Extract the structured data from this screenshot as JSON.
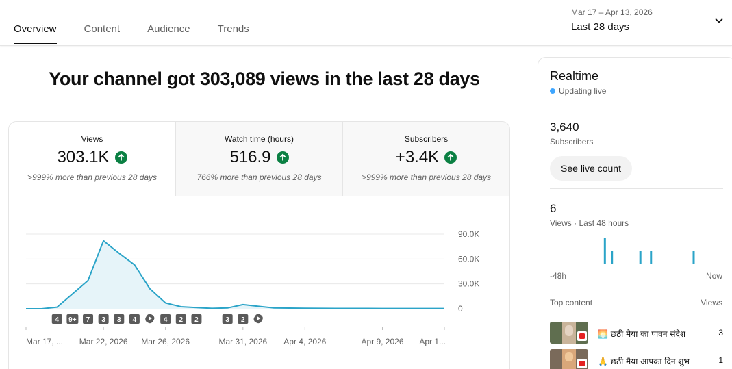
{
  "tabs": [
    {
      "label": "Overview",
      "active": true
    },
    {
      "label": "Content",
      "active": false
    },
    {
      "label": "Audience",
      "active": false
    },
    {
      "label": "Trends",
      "active": false
    }
  ],
  "date_range": {
    "range": "Mar 17 – Apr 13, 2026",
    "period": "Last 28 days",
    "icon": "chevron-down-icon"
  },
  "headline": "Your channel got 303,089 views in the last 28 days",
  "metrics": [
    {
      "label": "Views",
      "value": "303.1K",
      "compare": ">999% more than previous 28 days",
      "icon": "arrow-up-icon"
    },
    {
      "label": "Watch time (hours)",
      "value": "516.9",
      "compare": "766% more than previous 28 days",
      "icon": "arrow-up-icon"
    },
    {
      "label": "Subscribers",
      "value": "+3.4K",
      "compare": ">999% more than previous 28 days",
      "icon": "arrow-up-icon"
    }
  ],
  "chart_data": {
    "type": "area",
    "x": [
      "Mar 17",
      "Mar 18",
      "Mar 19",
      "Mar 20",
      "Mar 21",
      "Mar 22",
      "Mar 23",
      "Mar 24",
      "Mar 25",
      "Mar 26",
      "Mar 27",
      "Mar 28",
      "Mar 29",
      "Mar 30",
      "Mar 31",
      "Apr 1",
      "Apr 2",
      "Apr 3",
      "Apr 4",
      "Apr 5",
      "Apr 6",
      "Apr 7",
      "Apr 8",
      "Apr 9",
      "Apr 10",
      "Apr 11",
      "Apr 12",
      "Apr 13"
    ],
    "values": [
      0,
      0,
      2000,
      18000,
      34000,
      82000,
      67000,
      53000,
      24000,
      7000,
      2500,
      1500,
      500,
      1000,
      5000,
      3000,
      1000,
      800,
      600,
      500,
      400,
      400,
      400,
      300,
      300,
      300,
      300,
      300
    ],
    "x_tick_labels": [
      "Mar 17, ...",
      "Mar 22, 2026",
      "Mar 26, 2026",
      "Mar 31, 2026",
      "Apr 4, 2026",
      "Apr 9, 2026",
      "Apr 1..."
    ],
    "x_tick_index": [
      0,
      5,
      9,
      14,
      18,
      23,
      27
    ],
    "y_ticks": [
      "90.0K",
      "60.0K",
      "30.0K",
      "0"
    ],
    "ylim": [
      0,
      90000
    ],
    "grid": true,
    "color": "#2ba4c8",
    "markers": [
      {
        "index": 2,
        "label": "4"
      },
      {
        "index": 3,
        "label": "9+"
      },
      {
        "index": 4,
        "label": "7"
      },
      {
        "index": 5,
        "label": "3"
      },
      {
        "index": 6,
        "label": "3"
      },
      {
        "index": 7,
        "label": "4"
      },
      {
        "index": 8,
        "icon": "shorts-icon"
      },
      {
        "index": 9,
        "label": "4"
      },
      {
        "index": 10,
        "label": "2"
      },
      {
        "index": 11,
        "label": "2"
      },
      {
        "index": 13,
        "label": "3"
      },
      {
        "index": 14,
        "label": "2"
      },
      {
        "index": 15,
        "icon": "shorts-icon"
      }
    ]
  },
  "realtime": {
    "title": "Realtime",
    "status": "Updating live",
    "subscribers_value": "3,640",
    "subscribers_label": "Subscribers",
    "live_button": "See live count",
    "views_value": "6",
    "views_label": "Views · Last 48 hours",
    "axis_left": "-48h",
    "axis_right": "Now",
    "bars": [
      {
        "hour": 15,
        "views": 2
      },
      {
        "hour": 17,
        "views": 1
      },
      {
        "hour": 25,
        "views": 1
      },
      {
        "hour": 28,
        "views": 1
      },
      {
        "hour": 40,
        "views": 1
      }
    ],
    "bar_max": 2,
    "top_content_label": "Top content",
    "top_content_col": "Views",
    "top_content": [
      {
        "title": "🌅 छठी मैया का पावन संदेश",
        "views": "3"
      },
      {
        "title": "🙏 छठी मैया आपका दिन शुभ",
        "views": "1"
      }
    ]
  }
}
